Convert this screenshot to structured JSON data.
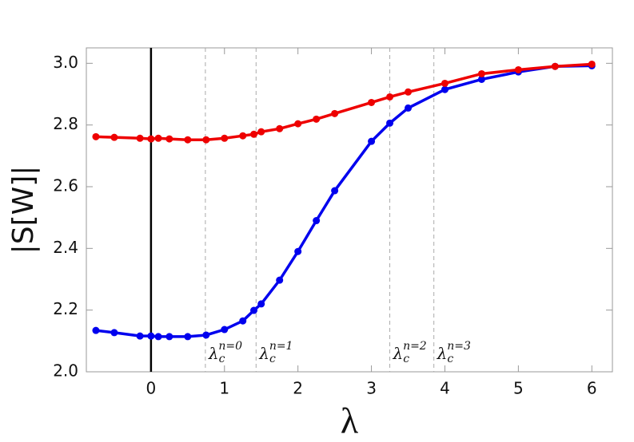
{
  "chart_data": {
    "type": "line",
    "x_label": "λ",
    "y_label": "|S[W]|",
    "x": [
      -0.75,
      -0.5,
      -0.15,
      0,
      0.1,
      0.25,
      0.5,
      0.75,
      1.0,
      1.25,
      1.4,
      1.5,
      1.75,
      2.0,
      2.25,
      2.5,
      3.0,
      3.25,
      3.5,
      4.0,
      4.5,
      5.0,
      5.5,
      6.0
    ],
    "series": [
      {
        "color": "#0000ee",
        "values": [
          2.134,
          2.127,
          2.116,
          2.116,
          2.114,
          2.114,
          2.114,
          2.119,
          2.137,
          2.165,
          2.199,
          2.22,
          2.297,
          2.39,
          2.49,
          2.587,
          2.747,
          2.806,
          2.855,
          2.915,
          2.948,
          2.972,
          2.99,
          2.992
        ]
      },
      {
        "color": "#ee0000",
        "values": [
          2.762,
          2.76,
          2.757,
          2.755,
          2.757,
          2.755,
          2.752,
          2.752,
          2.757,
          2.765,
          2.77,
          2.778,
          2.788,
          2.804,
          2.819,
          2.837,
          2.873,
          2.891,
          2.907,
          2.935,
          2.966,
          2.979,
          2.99,
          2.997
        ]
      }
    ],
    "xlim": [
      -0.88,
      6.28
    ],
    "ylim": [
      2.0,
      3.05
    ],
    "xticks": [
      0,
      1,
      2,
      3,
      4,
      5,
      6
    ],
    "yticks": [
      {
        "value": 2,
        "label": "2.0"
      },
      {
        "value": 2.2,
        "label": "2.2"
      },
      {
        "value": 2.4,
        "label": "2.4"
      },
      {
        "value": 2.6,
        "label": "2.6"
      },
      {
        "value": 2.8,
        "label": "2.8"
      },
      {
        "value": 3,
        "label": "3.0"
      }
    ],
    "vline": 0,
    "critical_lines": [
      {
        "x": 0.74,
        "symbol": "λ",
        "sub": "c",
        "sup": "n=0"
      },
      {
        "x": 1.43,
        "symbol": "λ",
        "sub": "c",
        "sup": "n=1"
      },
      {
        "x": 3.25,
        "symbol": "λ",
        "sub": "c",
        "sup": "n=2"
      },
      {
        "x": 3.85,
        "symbol": "λ",
        "sub": "c",
        "sup": "n=3"
      }
    ]
  }
}
